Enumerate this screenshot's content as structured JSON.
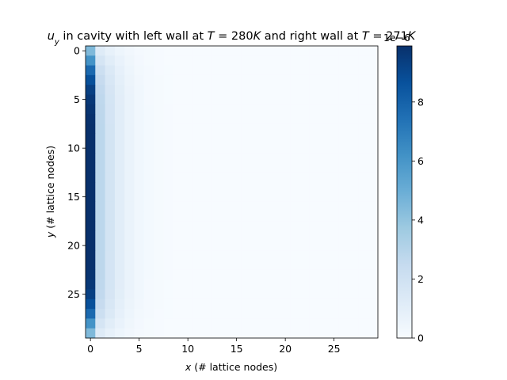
{
  "chart_data": {
    "type": "heatmap",
    "title": {
      "part1": "u",
      "sub": "y",
      "part2": " in cavity with left wall at ",
      "t1_var": "T",
      "t1_val": " = 280",
      "t1_unit": "K",
      "part3": " and right wall at ",
      "t2_var": "T",
      "t2_val": " = 271",
      "t2_unit": "K"
    },
    "xlabel": {
      "var": "x",
      "text": " (# lattice nodes)"
    },
    "ylabel": {
      "var": "y",
      "text": " (# lattice nodes)"
    },
    "grid_size": [
      30,
      30
    ],
    "x_ticks": [
      0,
      5,
      10,
      15,
      20,
      25
    ],
    "y_ticks": [
      0,
      5,
      10,
      15,
      20,
      25
    ],
    "colormap": "Blues",
    "colorbar": {
      "range": [
        0,
        9.9
      ],
      "ticks": [
        0,
        2,
        4,
        6,
        8
      ],
      "offset_label": "1e−6"
    },
    "column_decay": [
      1.0,
      0.28,
      0.18,
      0.11,
      0.065,
      0.035,
      0.018,
      0.009,
      0.004,
      0.002,
      0.001
    ],
    "row_profile": [
      0.45,
      0.62,
      0.78,
      0.88,
      0.94,
      0.97,
      0.985,
      0.995,
      1.0,
      1.0,
      1.0,
      1.0,
      1.0,
      1.0,
      1.0,
      1.0,
      1.0,
      1.0,
      1.0,
      1.0,
      1.0,
      1.0,
      0.995,
      0.985,
      0.97,
      0.94,
      0.88,
      0.78,
      0.62,
      0.45
    ],
    "max_value": 9.9
  }
}
